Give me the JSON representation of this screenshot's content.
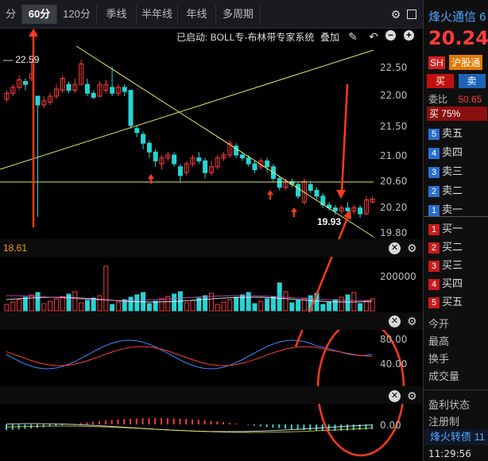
{
  "toolbar": {
    "partial_tab": "分",
    "tabs": [
      {
        "label": "60分",
        "active": true
      },
      {
        "label": "120分",
        "active": false
      },
      {
        "label": "季线",
        "active": false
      },
      {
        "label": "半年线",
        "active": false
      },
      {
        "label": "年线",
        "active": false
      },
      {
        "label": "多周期",
        "active": false
      }
    ]
  },
  "chart_header": {
    "status": "已启动: BOLL专-布林带专家系统",
    "overlay_label": "叠加"
  },
  "price_axis": [
    "22.50",
    "22.00",
    "21.50",
    "21.00",
    "20.60",
    "20.20",
    "19.80"
  ],
  "annotations": {
    "high_label": "— 22.59",
    "low_label": "19.93",
    "bottom_value": "18.61"
  },
  "volume_axis": [
    "200000"
  ],
  "kdj_axis": [
    "80.00",
    "40.00"
  ],
  "macd_axis": [
    "0.00"
  ],
  "sidebar": {
    "name": "烽火通信 6",
    "price": "20.24",
    "market_badge": "SH",
    "market_label": "沪股通",
    "buy_btn": "买",
    "sell_btn": "卖",
    "weibi_label": "委比",
    "weibi_value": "50.65",
    "buy_pct": "买 75%",
    "sell_levels": [
      {
        "num": "5",
        "label": "卖五"
      },
      {
        "num": "4",
        "label": "卖四"
      },
      {
        "num": "3",
        "label": "卖三"
      },
      {
        "num": "2",
        "label": "卖二"
      },
      {
        "num": "1",
        "label": "卖一"
      }
    ],
    "buy_levels": [
      {
        "num": "1",
        "label": "买一"
      },
      {
        "num": "2",
        "label": "买二"
      },
      {
        "num": "3",
        "label": "买三"
      },
      {
        "num": "4",
        "label": "买四"
      },
      {
        "num": "5",
        "label": "买五"
      }
    ],
    "stats": [
      "今开",
      "最高",
      "换手",
      "成交量"
    ],
    "profit_label": "盈利状态",
    "register_label": "注册制",
    "bond_label": "烽火转债 11",
    "time": "11:29:56"
  },
  "colors": {
    "up": "#ff3b3b",
    "down": "#27d4d4",
    "trend_line": "#e6e65c",
    "annotation": "#ff3a1a"
  }
}
